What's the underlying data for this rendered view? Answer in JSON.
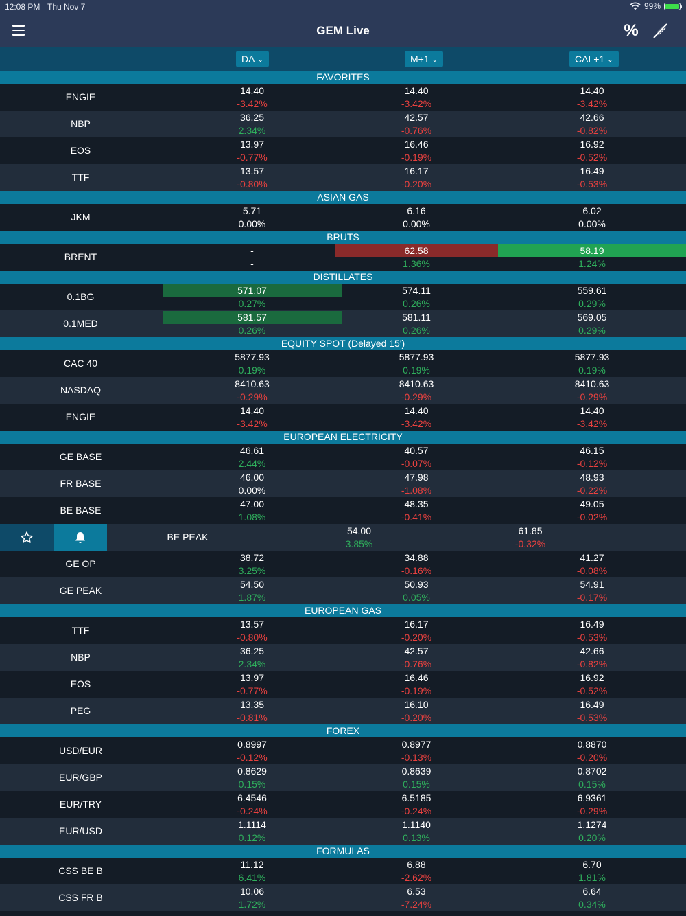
{
  "status_bar": {
    "time": "12:08 PM",
    "date": "Thu Nov 7",
    "battery": "99%"
  },
  "header": {
    "title": "GEM Live"
  },
  "columns": [
    {
      "label": "DA",
      "chevron": "⌄"
    },
    {
      "label": "M+1",
      "chevron": "⌄"
    },
    {
      "label": "CAL+1",
      "chevron": "⌄"
    }
  ],
  "icons": {
    "menu": "hamburger-icon",
    "percent": "percent-icon",
    "edit": "pen-slash-icon",
    "favorite": "star-outline-icon",
    "alert": "bell-icon"
  },
  "colors": {
    "positive": "#2fae5c",
    "negative": "#e8413f",
    "section": "#0c7a9c",
    "navbar": "#2c3a58"
  },
  "sections": [
    {
      "title": "FAVORITES",
      "rows": [
        {
          "name": "ENGIE",
          "cells": [
            {
              "price": "14.40",
              "change": "-3.42%",
              "dir": "neg"
            },
            {
              "price": "14.40",
              "change": "-3.42%",
              "dir": "neg"
            },
            {
              "price": "14.40",
              "change": "-3.42%",
              "dir": "neg"
            }
          ]
        },
        {
          "name": "NBP",
          "cells": [
            {
              "price": "36.25",
              "change": "2.34%",
              "dir": "pos"
            },
            {
              "price": "42.57",
              "change": "-0.76%",
              "dir": "neg"
            },
            {
              "price": "42.66",
              "change": "-0.82%",
              "dir": "neg"
            }
          ]
        },
        {
          "name": "EOS",
          "cells": [
            {
              "price": "13.97",
              "change": "-0.77%",
              "dir": "neg"
            },
            {
              "price": "16.46",
              "change": "-0.19%",
              "dir": "neg"
            },
            {
              "price": "16.92",
              "change": "-0.52%",
              "dir": "neg"
            }
          ]
        },
        {
          "name": "TTF",
          "cells": [
            {
              "price": "13.57",
              "change": "-0.80%",
              "dir": "neg"
            },
            {
              "price": "16.17",
              "change": "-0.20%",
              "dir": "neg"
            },
            {
              "price": "16.49",
              "change": "-0.53%",
              "dir": "neg"
            }
          ]
        }
      ]
    },
    {
      "title": "ASIAN GAS",
      "rows": [
        {
          "name": "JKM",
          "cells": [
            {
              "price": "5.71",
              "change": "0.00%",
              "dir": "neu"
            },
            {
              "price": "6.16",
              "change": "0.00%",
              "dir": "neu"
            },
            {
              "price": "6.02",
              "change": "0.00%",
              "dir": "neu"
            }
          ]
        }
      ]
    },
    {
      "title": "BRUTS",
      "rows": [
        {
          "name": "BRENT",
          "cells": [
            {
              "price": "-",
              "change": "-",
              "dir": "neu"
            },
            {
              "price": "62.58",
              "change": "1.36%",
              "dir": "pos",
              "flash": "down"
            },
            {
              "price": "58.19",
              "change": "1.24%",
              "dir": "pos",
              "flash": "up-bright"
            }
          ]
        }
      ]
    },
    {
      "title": "DISTILLATES",
      "rows": [
        {
          "name": "0.1BG",
          "cells": [
            {
              "price": "571.07",
              "change": "0.27%",
              "dir": "pos",
              "flash": "up"
            },
            {
              "price": "574.11",
              "change": "0.26%",
              "dir": "pos"
            },
            {
              "price": "559.61",
              "change": "0.29%",
              "dir": "pos"
            }
          ]
        },
        {
          "name": "0.1MED",
          "cells": [
            {
              "price": "581.57",
              "change": "0.26%",
              "dir": "pos",
              "flash": "up"
            },
            {
              "price": "581.11",
              "change": "0.26%",
              "dir": "pos"
            },
            {
              "price": "569.05",
              "change": "0.29%",
              "dir": "pos"
            }
          ]
        }
      ]
    },
    {
      "title": "EQUITY SPOT (Delayed 15')",
      "rows": [
        {
          "name": "CAC 40",
          "cells": [
            {
              "price": "5877.93",
              "change": "0.19%",
              "dir": "pos"
            },
            {
              "price": "5877.93",
              "change": "0.19%",
              "dir": "pos"
            },
            {
              "price": "5877.93",
              "change": "0.19%",
              "dir": "pos"
            }
          ]
        },
        {
          "name": "NASDAQ",
          "cells": [
            {
              "price": "8410.63",
              "change": "-0.29%",
              "dir": "neg"
            },
            {
              "price": "8410.63",
              "change": "-0.29%",
              "dir": "neg"
            },
            {
              "price": "8410.63",
              "change": "-0.29%",
              "dir": "neg"
            }
          ]
        },
        {
          "name": "ENGIE",
          "cells": [
            {
              "price": "14.40",
              "change": "-3.42%",
              "dir": "neg"
            },
            {
              "price": "14.40",
              "change": "-3.42%",
              "dir": "neg"
            },
            {
              "price": "14.40",
              "change": "-3.42%",
              "dir": "neg"
            }
          ]
        }
      ]
    },
    {
      "title": "EUROPEAN ELECTRICITY",
      "rows": [
        {
          "name": "GE BASE",
          "cells": [
            {
              "price": "46.61",
              "change": "2.44%",
              "dir": "pos"
            },
            {
              "price": "40.57",
              "change": "-0.07%",
              "dir": "neg"
            },
            {
              "price": "46.15",
              "change": "-0.12%",
              "dir": "neg"
            }
          ]
        },
        {
          "name": "FR BASE",
          "cells": [
            {
              "price": "46.00",
              "change": "0.00%",
              "dir": "neu"
            },
            {
              "price": "47.98",
              "change": "-1.08%",
              "dir": "neg"
            },
            {
              "price": "48.93",
              "change": "-0.22%",
              "dir": "neg"
            }
          ]
        },
        {
          "name": "BE BASE",
          "cells": [
            {
              "price": "47.00",
              "change": "1.08%",
              "dir": "pos"
            },
            {
              "price": "48.35",
              "change": "-0.41%",
              "dir": "neg"
            },
            {
              "price": "49.05",
              "change": "-0.02%",
              "dir": "neg"
            }
          ]
        },
        {
          "name": "BE PEAK",
          "swiped": true,
          "cells": [
            {
              "price": "54.00",
              "change": "3.85%",
              "dir": "pos"
            },
            {
              "price": "61.85",
              "change": "-0.32%",
              "dir": "neg"
            }
          ]
        },
        {
          "name": "GE OP",
          "cells": [
            {
              "price": "38.72",
              "change": "3.25%",
              "dir": "pos"
            },
            {
              "price": "34.88",
              "change": "-0.16%",
              "dir": "neg"
            },
            {
              "price": "41.27",
              "change": "-0.08%",
              "dir": "neg"
            }
          ]
        },
        {
          "name": "GE PEAK",
          "cells": [
            {
              "price": "54.50",
              "change": "1.87%",
              "dir": "pos"
            },
            {
              "price": "50.93",
              "change": "0.05%",
              "dir": "pos"
            },
            {
              "price": "54.91",
              "change": "-0.17%",
              "dir": "neg"
            }
          ]
        }
      ]
    },
    {
      "title": "EUROPEAN GAS",
      "rows": [
        {
          "name": "TTF",
          "cells": [
            {
              "price": "13.57",
              "change": "-0.80%",
              "dir": "neg"
            },
            {
              "price": "16.17",
              "change": "-0.20%",
              "dir": "neg"
            },
            {
              "price": "16.49",
              "change": "-0.53%",
              "dir": "neg"
            }
          ]
        },
        {
          "name": "NBP",
          "cells": [
            {
              "price": "36.25",
              "change": "2.34%",
              "dir": "pos"
            },
            {
              "price": "42.57",
              "change": "-0.76%",
              "dir": "neg"
            },
            {
              "price": "42.66",
              "change": "-0.82%",
              "dir": "neg"
            }
          ]
        },
        {
          "name": "EOS",
          "cells": [
            {
              "price": "13.97",
              "change": "-0.77%",
              "dir": "neg"
            },
            {
              "price": "16.46",
              "change": "-0.19%",
              "dir": "neg"
            },
            {
              "price": "16.92",
              "change": "-0.52%",
              "dir": "neg"
            }
          ]
        },
        {
          "name": "PEG",
          "cells": [
            {
              "price": "13.35",
              "change": "-0.81%",
              "dir": "neg"
            },
            {
              "price": "16.10",
              "change": "-0.20%",
              "dir": "neg"
            },
            {
              "price": "16.49",
              "change": "-0.53%",
              "dir": "neg"
            }
          ]
        }
      ]
    },
    {
      "title": "FOREX",
      "rows": [
        {
          "name": "USD/EUR",
          "cells": [
            {
              "price": "0.8997",
              "change": "-0.12%",
              "dir": "neg"
            },
            {
              "price": "0.8977",
              "change": "-0.13%",
              "dir": "neg"
            },
            {
              "price": "0.8870",
              "change": "-0.20%",
              "dir": "neg"
            }
          ]
        },
        {
          "name": "EUR/GBP",
          "cells": [
            {
              "price": "0.8629",
              "change": "0.15%",
              "dir": "pos"
            },
            {
              "price": "0.8639",
              "change": "0.15%",
              "dir": "pos"
            },
            {
              "price": "0.8702",
              "change": "0.15%",
              "dir": "pos"
            }
          ]
        },
        {
          "name": "EUR/TRY",
          "cells": [
            {
              "price": "6.4546",
              "change": "-0.24%",
              "dir": "neg"
            },
            {
              "price": "6.5185",
              "change": "-0.24%",
              "dir": "neg"
            },
            {
              "price": "6.9361",
              "change": "-0.29%",
              "dir": "neg"
            }
          ]
        },
        {
          "name": "EUR/USD",
          "cells": [
            {
              "price": "1.1114",
              "change": "0.12%",
              "dir": "pos"
            },
            {
              "price": "1.1140",
              "change": "0.13%",
              "dir": "pos"
            },
            {
              "price": "1.1274",
              "change": "0.20%",
              "dir": "pos"
            }
          ]
        }
      ]
    },
    {
      "title": "FORMULAS",
      "rows": [
        {
          "name": "CSS BE B",
          "cells": [
            {
              "price": "11.12",
              "change": "6.41%",
              "dir": "pos"
            },
            {
              "price": "6.88",
              "change": "-2.62%",
              "dir": "neg"
            },
            {
              "price": "6.70",
              "change": "1.81%",
              "dir": "pos"
            }
          ]
        },
        {
          "name": "CSS FR B",
          "cells": [
            {
              "price": "10.06",
              "change": "1.72%",
              "dir": "pos"
            },
            {
              "price": "6.53",
              "change": "-7.24%",
              "dir": "neg"
            },
            {
              "price": "6.64",
              "change": "0.34%",
              "dir": "pos"
            }
          ]
        }
      ]
    }
  ]
}
